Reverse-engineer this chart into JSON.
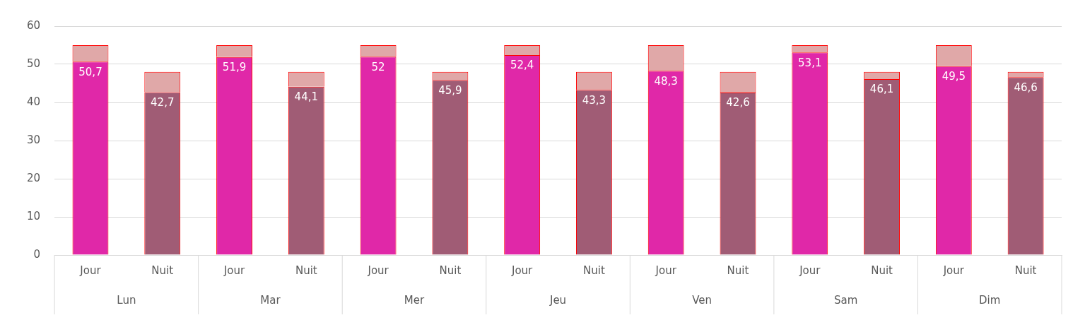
{
  "chart_data": {
    "type": "bar",
    "stacked": true,
    "categories": [
      "Jour",
      "Nuit",
      "Jour",
      "Nuit",
      "Jour",
      "Nuit",
      "Jour",
      "Nuit",
      "Jour",
      "Nuit",
      "Jour",
      "Nuit",
      "Jour",
      "Nuit"
    ],
    "annotations": [
      "Lun",
      "Mar",
      "Mer",
      "Jeu",
      "Ven",
      "Sam",
      "Dim"
    ],
    "series": [
      {
        "colors": [
          "#e028a8",
          "#a05c75",
          "#e028a8",
          "#a05c75",
          "#e028a8",
          "#a05c75",
          "#e028a8",
          "#a05c75",
          "#e028a8",
          "#a05c75",
          "#e028a8",
          "#a05c75",
          "#e028a8",
          "#a05c75"
        ],
        "values": [
          50.7,
          42.7,
          51.9,
          44.1,
          52,
          45.9,
          52.4,
          43.3,
          48.3,
          42.6,
          53.1,
          46.1,
          49.5,
          46.6
        ],
        "value_labels": [
          "50,7",
          "42,7",
          "51,9",
          "44,1",
          "52",
          "45,9",
          "52,4",
          "43,3",
          "48,3",
          "42,6",
          "53,1",
          "46,1",
          "49,5",
          "46,6"
        ]
      },
      {
        "color": "#e0a8a8",
        "values": [
          4.3,
          5.3,
          3.1,
          3.9,
          3,
          2.1,
          2.6,
          4.7,
          6.7,
          5.4,
          1.9,
          1.9,
          5.5,
          1.4
        ]
      }
    ],
    "ylim": [
      0,
      60
    ],
    "yticks": [
      0,
      10,
      20,
      30,
      40,
      50,
      60
    ],
    "grid": "y",
    "legend": false
  }
}
